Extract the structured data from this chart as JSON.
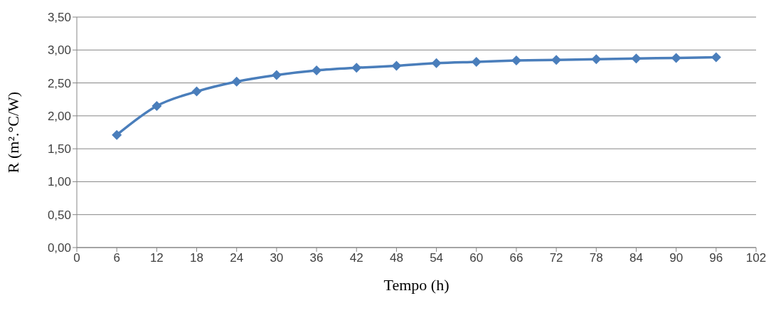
{
  "chart_data": {
    "type": "line",
    "xlabel": "Tempo (h)",
    "ylabel": "R (m².°C/W)",
    "x": [
      6,
      12,
      18,
      24,
      30,
      36,
      42,
      48,
      54,
      60,
      66,
      72,
      78,
      84,
      90,
      96
    ],
    "series": [
      {
        "color": "#4a7ebb",
        "values": [
          1.71,
          2.15,
          2.37,
          2.52,
          2.62,
          2.69,
          2.73,
          2.76,
          2.8,
          2.82,
          2.84,
          2.85,
          2.86,
          2.87,
          2.88,
          2.89
        ]
      }
    ],
    "xlim": [
      0,
      102
    ],
    "xticks": [
      0,
      6,
      12,
      18,
      24,
      30,
      36,
      42,
      48,
      54,
      60,
      66,
      72,
      78,
      84,
      90,
      96,
      102
    ],
    "ylim": [
      0,
      3.5
    ],
    "yticks": [
      {
        "value": 0,
        "label": "0,00"
      },
      {
        "value": 0.5,
        "label": "0,50"
      },
      {
        "value": 1,
        "label": "1,00"
      },
      {
        "value": 1.5,
        "label": "1,50"
      },
      {
        "value": 2,
        "label": "2,00"
      },
      {
        "value": 2.5,
        "label": "2,50"
      },
      {
        "value": 3,
        "label": "3,00"
      },
      {
        "value": 3.5,
        "label": "3,50"
      }
    ],
    "grid": "y",
    "marker": "diamond",
    "line_style": "solid",
    "legend": false
  }
}
